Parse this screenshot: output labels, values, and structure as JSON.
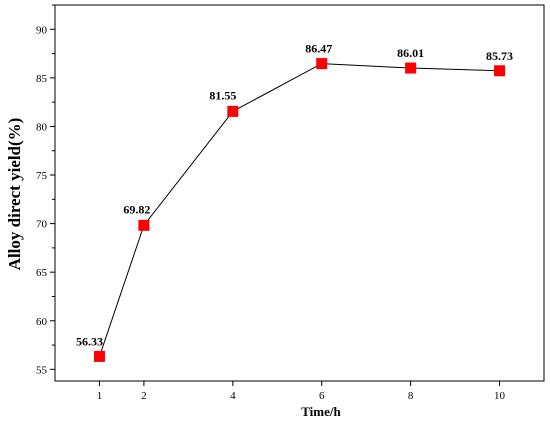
{
  "chart_data": {
    "type": "line",
    "x": [
      1,
      2,
      4,
      6,
      8,
      10
    ],
    "series": [
      {
        "values": [
          56.33,
          69.82,
          81.55,
          86.47,
          86.01,
          85.73
        ]
      }
    ],
    "data_labels": [
      "56.33",
      "69.82",
      "81.55",
      "86.47",
      "86.01",
      "85.73"
    ],
    "xlabel": "Time/h",
    "ylabel": "Alloy direct yield(%)",
    "xticks": [
      1,
      2,
      4,
      6,
      8,
      10
    ],
    "yticks": [
      55,
      60,
      65,
      70,
      75,
      80,
      85,
      90
    ],
    "xlim": [
      0,
      11
    ],
    "ylim": [
      53.8,
      92.5
    ],
    "grid": false,
    "legend": "none",
    "marker": "square",
    "marker_color": "#ff0000",
    "line_color": "#000000"
  }
}
